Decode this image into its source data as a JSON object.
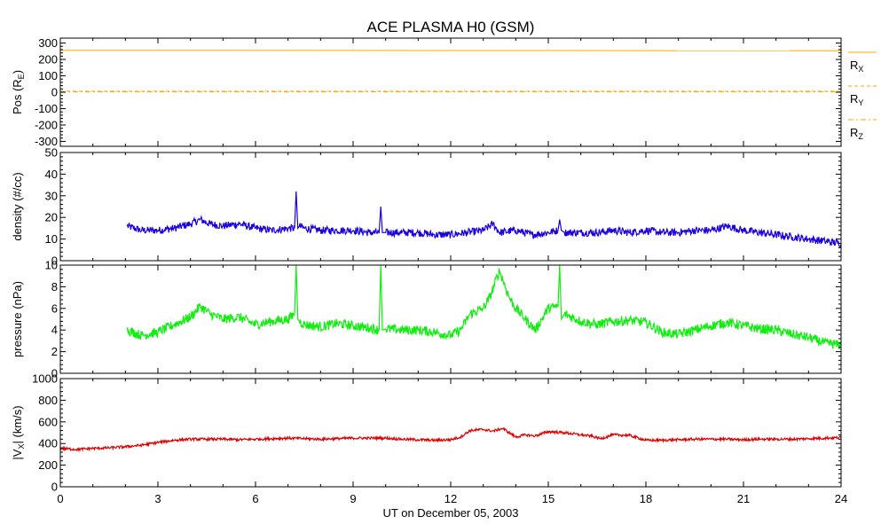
{
  "chart_data": {
    "type": "line",
    "title": "ACE PLASMA H0 (GSM)",
    "xlabel": "UT on December 05, 2003",
    "xlim": [
      0,
      24
    ],
    "x_ticks": [
      0,
      3,
      6,
      9,
      12,
      15,
      18,
      21,
      24
    ],
    "x_tick_labels": [
      "0",
      "3",
      "6",
      "9",
      "12",
      "15",
      "18",
      "21",
      "24"
    ],
    "panels": [
      {
        "id": "pos",
        "ylabel": "Pos (R",
        "ylabel_sub": "E",
        "ylabel_end": ")",
        "ylim": [
          -330,
          330
        ],
        "y_ticks": [
          -300,
          -200,
          -100,
          0,
          100,
          200,
          300
        ],
        "y_tick_labels": [
          "-300",
          "-200",
          "-100",
          "0",
          "100",
          "200",
          "300"
        ],
        "series": [
          {
            "legend": "R",
            "legend_sub": "X",
            "color": "#ffaa00",
            "style": "solid",
            "x": [
              0,
              24
            ],
            "y": [
              256,
              253
            ]
          },
          {
            "legend": "R",
            "legend_sub": "Y",
            "color": "#ffaa00",
            "style": "dashed",
            "x": [
              0,
              24
            ],
            "y": [
              6,
              6
            ]
          },
          {
            "legend": "R",
            "legend_sub": "Z",
            "color": "#ffaa00",
            "style": "dashdot",
            "x": [
              0,
              24
            ],
            "y": [
              2,
              2
            ]
          }
        ]
      },
      {
        "id": "density",
        "ylabel": "density (#/cc)",
        "ylim": [
          0,
          50
        ],
        "y_ticks": [
          0,
          10,
          20,
          30,
          40,
          50
        ],
        "y_tick_labels": [
          "0",
          "10",
          "20",
          "30",
          "40",
          "50"
        ],
        "series": [
          {
            "color": "#1a00e0",
            "x": [
              2.05,
              2.5,
              3.0,
              3.5,
              4.0,
              4.3,
              4.6,
              5.0,
              5.5,
              6.0,
              6.5,
              7.0,
              7.2,
              7.25,
              7.3,
              7.35,
              7.5,
              8.0,
              8.5,
              9.0,
              9.5,
              9.8,
              9.85,
              9.9,
              10.0,
              10.5,
              11.0,
              11.5,
              12.0,
              12.5,
              13.0,
              13.3,
              13.5,
              14.0,
              14.5,
              15.0,
              15.3,
              15.35,
              15.4,
              15.5,
              16.0,
              16.5,
              17.0,
              17.5,
              18.0,
              18.5,
              19.0,
              19.5,
              20.0,
              20.5,
              21.0,
              21.5,
              22.0,
              22.5,
              23.0,
              23.5,
              24.0
            ],
            "y": [
              16,
              14,
              14,
              15,
              17,
              19,
              17,
              16,
              17,
              15,
              14,
              15,
              15,
              32,
              15,
              16,
              15,
              14,
              14,
              14,
              13,
              13,
              25,
              13,
              13,
              13,
              13,
              12,
              12,
              13,
              14,
              17,
              13,
              14,
              12,
              13,
              14,
              19,
              14,
              13,
              13,
              13,
              14,
              13,
              14,
              13,
              13,
              14,
              14,
              16,
              14,
              13,
              12,
              11,
              10,
              9,
              8
            ]
          }
        ]
      },
      {
        "id": "pressure",
        "ylabel": "pressure (nPa)",
        "ylim": [
          0,
          10
        ],
        "y_ticks": [
          0,
          2,
          4,
          6,
          8,
          10
        ],
        "y_tick_labels": [
          "0",
          "2",
          "4",
          "6",
          "8",
          "10"
        ],
        "series": [
          {
            "color": "#10ee10",
            "x": [
              2.05,
              2.5,
              3.0,
              3.5,
              4.0,
              4.3,
              4.6,
              5.0,
              5.5,
              6.0,
              6.5,
              7.0,
              7.2,
              7.25,
              7.3,
              7.35,
              7.5,
              8.0,
              8.5,
              9.0,
              9.5,
              9.8,
              9.85,
              9.9,
              10.0,
              10.5,
              11.0,
              11.5,
              12.0,
              12.3,
              12.6,
              13.0,
              13.2,
              13.5,
              13.8,
              14.0,
              14.3,
              14.6,
              15.0,
              15.3,
              15.35,
              15.4,
              15.5,
              16.0,
              16.5,
              17.0,
              17.5,
              18.0,
              18.5,
              19.0,
              19.5,
              20.0,
              20.5,
              21.0,
              21.5,
              22.0,
              22.5,
              23.0,
              23.5,
              24.0
            ],
            "y": [
              4.0,
              3.5,
              3.8,
              4.5,
              5.2,
              6.2,
              5.5,
              5.0,
              5.2,
              4.5,
              4.8,
              5.0,
              5.5,
              10.0,
              5.0,
              4.8,
              4.5,
              4.3,
              4.6,
              4.4,
              4.2,
              4.0,
              10.0,
              4.0,
              4.1,
              4.0,
              4.0,
              3.8,
              3.5,
              4.0,
              5.5,
              6.0,
              7.0,
              9.5,
              7.0,
              6.0,
              5.0,
              4.0,
              6.0,
              6.2,
              10.0,
              5.0,
              5.5,
              4.8,
              4.5,
              4.8,
              4.9,
              4.7,
              3.8,
              3.6,
              4.0,
              4.4,
              4.7,
              4.4,
              4.1,
              4.0,
              3.6,
              3.3,
              2.8,
              2.6
            ]
          }
        ]
      },
      {
        "id": "vx",
        "ylabel": "|V",
        "ylabel_sub": "X",
        "ylabel_end": "| (km/s)",
        "ylim": [
          0,
          1000
        ],
        "y_ticks": [
          0,
          200,
          400,
          600,
          800,
          1000
        ],
        "y_tick_labels": [
          "0",
          "200",
          "400",
          "600",
          "800",
          "1000"
        ],
        "series": [
          {
            "color": "#e00000",
            "x": [
              0,
              0.5,
              1.0,
              1.5,
              2.0,
              2.5,
              3.0,
              3.5,
              4.0,
              4.5,
              5.0,
              5.5,
              6.0,
              6.5,
              7.0,
              7.5,
              8.0,
              8.5,
              9.0,
              9.5,
              10.0,
              10.5,
              11.0,
              11.5,
              12.0,
              12.3,
              12.6,
              13.0,
              13.3,
              13.6,
              14.0,
              14.3,
              14.6,
              15.0,
              15.5,
              16.0,
              16.3,
              16.6,
              17.0,
              17.5,
              18.0,
              18.5,
              19.0,
              19.5,
              20.0,
              20.5,
              21.0,
              21.5,
              22.0,
              22.5,
              23.0,
              23.5,
              24.0
            ],
            "y": [
              355,
              345,
              355,
              360,
              370,
              385,
              410,
              430,
              440,
              440,
              440,
              435,
              440,
              445,
              450,
              445,
              440,
              445,
              450,
              450,
              450,
              440,
              435,
              430,
              435,
              460,
              520,
              530,
              515,
              540,
              460,
              480,
              470,
              510,
              500,
              480,
              470,
              445,
              480,
              475,
              430,
              430,
              435,
              440,
              440,
              440,
              435,
              440,
              440,
              440,
              445,
              450,
              455
            ]
          }
        ]
      }
    ]
  }
}
